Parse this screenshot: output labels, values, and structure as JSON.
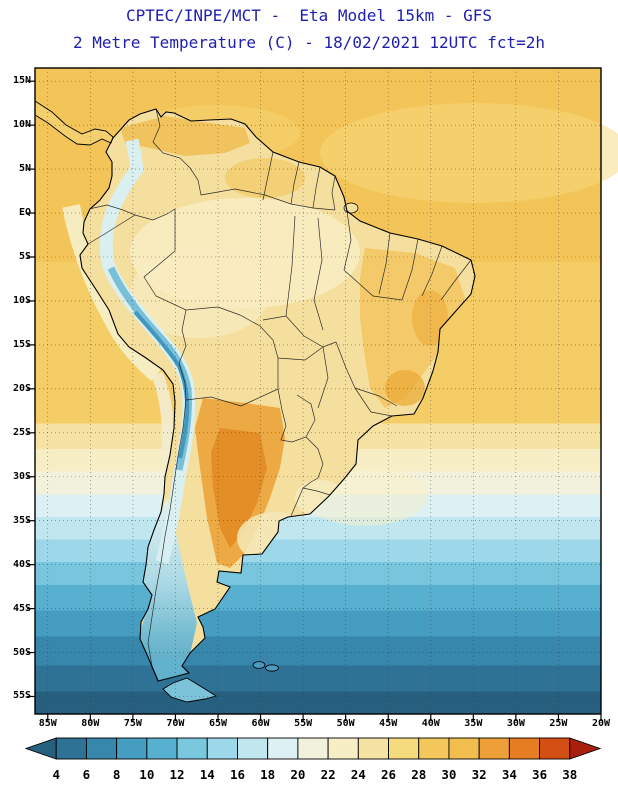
{
  "header": {
    "line1": "CPTEC/INPE/MCT -  Eta Model 15km - GFS",
    "line2": "2 Metre Temperature (C) - 18/02/2021 12UTC fct=2h"
  },
  "map": {
    "y_axis_labels": [
      "15N",
      "10N",
      "5N",
      "EQ",
      "5S",
      "10S",
      "15S",
      "20S",
      "25S",
      "30S",
      "35S",
      "40S",
      "45S",
      "50S",
      "55S"
    ],
    "x_axis_labels": [
      "85W",
      "80W",
      "75W",
      "70W",
      "65W",
      "60W",
      "55W",
      "50W",
      "45W",
      "40W",
      "35W",
      "30W",
      "25W",
      "20W"
    ]
  },
  "colorbar": {
    "tick_labels": [
      "4",
      "6",
      "8",
      "10",
      "12",
      "14",
      "16",
      "18",
      "20",
      "22",
      "24",
      "26",
      "28",
      "30",
      "32",
      "34",
      "36",
      "38"
    ],
    "colors": [
      "#27607f",
      "#2e7296",
      "#3787ad",
      "#459dc2",
      "#57b0cf",
      "#79c8de",
      "#9cd8e9",
      "#c0e6ef",
      "#ddf0f4",
      "#f2f2dc",
      "#f7eec6",
      "#f6e3a4",
      "#f6da7e",
      "#f4c75c",
      "#f1bd4e",
      "#ee9f38",
      "#e67d22",
      "#d44f14",
      "#a8200c"
    ]
  },
  "chart_data": {
    "type": "heatmap",
    "title": "CPTEC/INPE/MCT -  Eta Model 15km - GFS",
    "subtitle": "2 Metre Temperature (C) - 18/02/2021 12UTC fct=2h",
    "variable": "2 Metre Temperature",
    "units": "C",
    "model": "Eta Model 15km",
    "boundary_data": "GFS",
    "valid": "18/02/2021 12UTC",
    "forecast": "fct=2h",
    "x_ticks": [
      "85W",
      "80W",
      "75W",
      "70W",
      "65W",
      "60W",
      "55W",
      "50W",
      "45W",
      "40W",
      "35W",
      "30W",
      "25W",
      "20W"
    ],
    "y_ticks": [
      "15N",
      "10N",
      "5N",
      "EQ",
      "5S",
      "10S",
      "15S",
      "20S",
      "25S",
      "30S",
      "35S",
      "40S",
      "45S",
      "50S",
      "55S"
    ],
    "colorbar_values": [
      4,
      6,
      8,
      10,
      12,
      14,
      16,
      18,
      20,
      22,
      24,
      26,
      28,
      30,
      32,
      34,
      36,
      38
    ],
    "colorbar_colors": [
      "#27607f",
      "#2e7296",
      "#3787ad",
      "#459dc2",
      "#57b0cf",
      "#79c8de",
      "#9cd8e9",
      "#c0e6ef",
      "#ddf0f4",
      "#f2f2dc",
      "#f7eec6",
      "#f6e3a4",
      "#f6da7e",
      "#f4c75c",
      "#f1bd4e",
      "#ee9f38",
      "#e67d22",
      "#d44f14",
      "#a8200c"
    ],
    "legend_position": "bottom"
  }
}
